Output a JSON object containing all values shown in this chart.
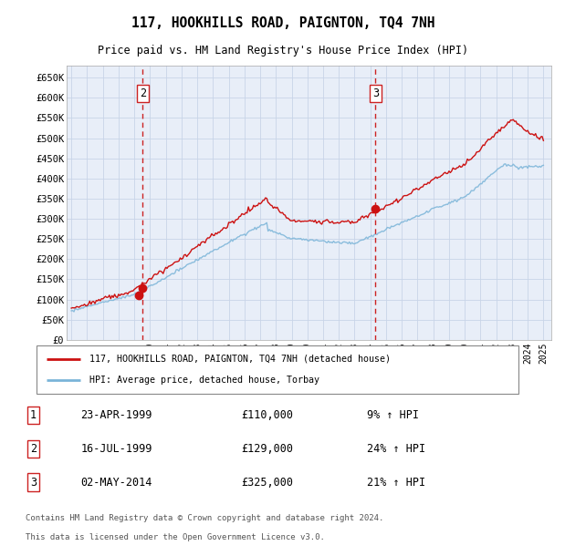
{
  "title": "117, HOOKHILLS ROAD, PAIGNTON, TQ4 7NH",
  "subtitle": "Price paid vs. HM Land Registry's House Price Index (HPI)",
  "legend_line1": "117, HOOKHILLS ROAD, PAIGNTON, TQ4 7NH (detached house)",
  "legend_line2": "HPI: Average price, detached house, Torbay",
  "footer1": "Contains HM Land Registry data © Crown copyright and database right 2024.",
  "footer2": "This data is licensed under the Open Government Licence v3.0.",
  "transactions": [
    {
      "num": 1,
      "date": "23-APR-1999",
      "price": 110000,
      "pct": "9%",
      "dir": "↑",
      "year": 1999.31
    },
    {
      "num": 2,
      "date": "16-JUL-1999",
      "price": 129000,
      "pct": "24%",
      "dir": "↑",
      "year": 1999.54
    },
    {
      "num": 3,
      "date": "02-MAY-2014",
      "price": 325000,
      "pct": "21%",
      "dir": "↑",
      "year": 2014.33
    }
  ],
  "vline2_x": 1999.54,
  "vline3_x": 2014.33,
  "hpi_color": "#7ab4d8",
  "price_color": "#cc1111",
  "vline_color": "#cc2222",
  "grid_color": "#c8d4e8",
  "plot_bg_color": "#e8eef8",
  "ylim_min": 0,
  "ylim_max": 680000,
  "xlim_min": 1994.7,
  "xlim_max": 2025.5,
  "yticks": [
    0,
    50000,
    100000,
    150000,
    200000,
    250000,
    300000,
    350000,
    400000,
    450000,
    500000,
    550000,
    600000,
    650000
  ],
  "xtick_years": [
    1995,
    1996,
    1997,
    1998,
    1999,
    2000,
    2001,
    2002,
    2003,
    2004,
    2005,
    2006,
    2007,
    2008,
    2009,
    2010,
    2011,
    2012,
    2013,
    2014,
    2015,
    2016,
    2017,
    2018,
    2019,
    2020,
    2021,
    2022,
    2023,
    2024,
    2025
  ]
}
